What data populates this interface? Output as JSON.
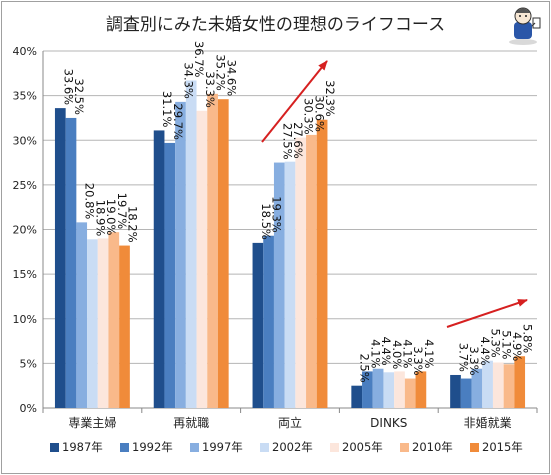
{
  "chart_data": {
    "type": "bar",
    "title": "調査別にみた未婚女性の理想のライフコース",
    "categories": [
      "専業主婦",
      "再就職",
      "両立",
      "DINKS",
      "非婚就業"
    ],
    "ylim": [
      0,
      40
    ],
    "yticks": [
      "0%",
      "5%",
      "10%",
      "15%",
      "20%",
      "25%",
      "30%",
      "35%",
      "40%"
    ],
    "grid": true,
    "legend_position": "bottom",
    "series": [
      {
        "name": "1987年",
        "color": "#1f4e8c",
        "values": [
          33.6,
          31.1,
          18.5,
          2.5,
          3.7
        ]
      },
      {
        "name": "1992年",
        "color": "#4a7ec0",
        "values": [
          32.5,
          29.7,
          19.3,
          4.1,
          3.3
        ]
      },
      {
        "name": "1997年",
        "color": "#87aee0",
        "values": [
          20.8,
          34.3,
          27.5,
          4.4,
          4.4
        ]
      },
      {
        "name": "2002年",
        "color": "#c9dcf4",
        "values": [
          18.9,
          36.7,
          27.6,
          4.0,
          5.3
        ]
      },
      {
        "name": "2005年",
        "color": "#fce6dc",
        "values": [
          19.0,
          33.3,
          30.3,
          4.1,
          5.1
        ]
      },
      {
        "name": "2010年",
        "color": "#f9b98a",
        "values": [
          19.7,
          35.2,
          30.6,
          3.3,
          4.9
        ]
      },
      {
        "name": "2015年",
        "color": "#f08b3a",
        "values": [
          18.2,
          34.6,
          32.3,
          4.1,
          5.8
        ]
      }
    ],
    "annotations": [
      "trend-arrow-両立",
      "trend-arrow-非婚就業"
    ],
    "arrow_color": "#d62020"
  }
}
